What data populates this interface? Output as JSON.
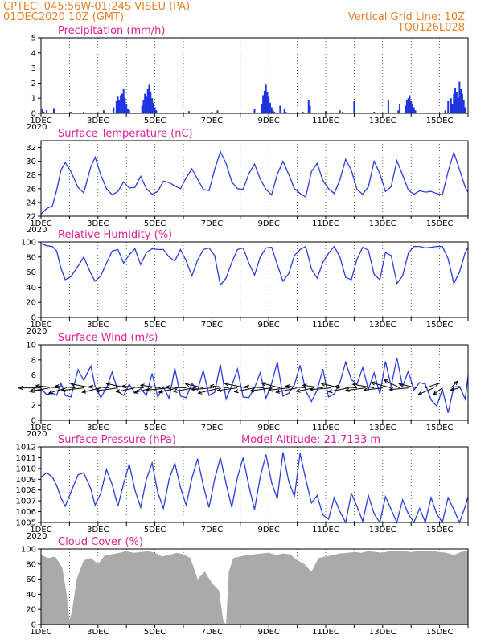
{
  "header": {
    "line1": "CPTEC:   045:56W-01:24S   VISEU (PA)",
    "line2": "01DEC2020 10Z (GMT)",
    "right1": "Vertical Grid Line: 10Z",
    "right2": "TQ0126L028"
  },
  "colors": {
    "header": "#e8822a",
    "title": "#e0209a",
    "line": "#2a3fd6",
    "bar": "#1f32e0",
    "cloud": "#aaaaaa",
    "arrow": "#000000"
  },
  "x_axis": {
    "ticks": [
      "1DEC",
      "3DEC",
      "5DEC",
      "7DEC",
      "9DEC",
      "11DEC",
      "13DEC",
      "15DEC"
    ],
    "cut_label": "2020",
    "day_range": [
      0,
      15
    ]
  },
  "chart_data": [
    {
      "id": "precip",
      "type": "bar",
      "title": "Precipitation (mm/h)",
      "ylim": [
        0,
        5
      ],
      "yticks": [
        0,
        1,
        2,
        3,
        4,
        5
      ],
      "x": [
        0.05,
        0.1,
        0.2,
        0.45,
        1.05,
        1.5,
        2.2,
        2.55,
        2.65,
        2.7,
        2.75,
        2.8,
        2.85,
        2.9,
        2.95,
        3.0,
        3.05,
        3.1,
        3.55,
        3.6,
        3.65,
        3.7,
        3.75,
        3.8,
        3.85,
        3.9,
        3.95,
        4.0,
        4.05,
        5.2,
        6.0,
        6.2,
        7.5,
        7.75,
        7.8,
        7.85,
        7.9,
        7.95,
        8.0,
        8.05,
        8.1,
        8.15,
        8.2,
        8.4,
        8.55,
        8.6,
        9.2,
        9.4,
        9.45,
        10.0,
        10.5,
        10.6,
        11.0,
        11.7,
        12.2,
        12.55,
        12.6,
        12.8,
        12.85,
        12.9,
        12.95,
        13.0,
        13.05,
        13.1,
        13.15,
        14.2,
        14.3,
        14.4,
        14.45,
        14.5,
        14.55,
        14.6,
        14.65,
        14.7,
        14.75,
        14.8,
        14.85,
        14.9
      ],
      "values": [
        0.3,
        0.1,
        0.2,
        0.35,
        0.1,
        0.1,
        0.2,
        0.4,
        0.8,
        1.1,
        0.9,
        1.2,
        1.3,
        1.6,
        1.0,
        0.6,
        0.3,
        0.2,
        0.5,
        0.9,
        1.3,
        1.1,
        1.6,
        1.9,
        1.4,
        1.0,
        0.7,
        0.4,
        0.2,
        0.15,
        0.1,
        0.2,
        0.3,
        0.6,
        1.2,
        1.5,
        1.9,
        1.4,
        1.1,
        0.7,
        0.4,
        0.2,
        0.1,
        0.5,
        0.3,
        0.1,
        0.1,
        0.9,
        0.5,
        0.15,
        0.2,
        0.1,
        0.8,
        0.1,
        0.9,
        0.2,
        0.6,
        0.5,
        0.9,
        1.0,
        1.2,
        0.8,
        0.6,
        0.4,
        0.2,
        0.2,
        0.8,
        1.0,
        0.6,
        1.3,
        1.7,
        1.4,
        1.0,
        2.1,
        1.6,
        1.3,
        0.9,
        0.4
      ]
    },
    {
      "id": "temp",
      "type": "line",
      "title": "Surface Temperature (nC)",
      "ylim": [
        22,
        33
      ],
      "yticks": [
        22,
        24,
        26,
        28,
        30,
        32
      ],
      "x": [
        0,
        0.2,
        0.4,
        0.55,
        0.7,
        0.85,
        1.05,
        1.3,
        1.5,
        1.75,
        1.9,
        2.1,
        2.3,
        2.5,
        2.7,
        2.9,
        3.1,
        3.3,
        3.5,
        3.7,
        3.9,
        4.1,
        4.3,
        4.5,
        4.7,
        4.9,
        5.1,
        5.3,
        5.5,
        5.7,
        5.9,
        6.1,
        6.3,
        6.5,
        6.7,
        6.9,
        7.1,
        7.3,
        7.5,
        7.7,
        7.9,
        8.1,
        8.3,
        8.5,
        8.7,
        8.9,
        9.1,
        9.3,
        9.5,
        9.7,
        9.9,
        10.1,
        10.3,
        10.5,
        10.7,
        10.9,
        11.1,
        11.3,
        11.5,
        11.7,
        11.9,
        12.1,
        12.3,
        12.5,
        12.7,
        12.9,
        13.1,
        13.3,
        13.5,
        13.7,
        13.9,
        14.1,
        14.3,
        14.5,
        14.7,
        14.9,
        15.0
      ],
      "values": [
        22.3,
        23.1,
        23.5,
        25.8,
        28.7,
        29.8,
        28.5,
        26.2,
        25.4,
        29.2,
        30.6,
        28.0,
        26.0,
        25.1,
        25.6,
        27.0,
        26.1,
        26.2,
        27.8,
        26.0,
        25.2,
        25.6,
        27.1,
        26.9,
        26.4,
        26.0,
        27.6,
        28.9,
        27.4,
        25.9,
        25.7,
        28.8,
        31.4,
        29.7,
        27.0,
        26.0,
        25.9,
        28.2,
        29.6,
        27.4,
        25.9,
        25.1,
        28.1,
        30.0,
        28.1,
        26.0,
        25.3,
        24.8,
        28.5,
        29.7,
        27.2,
        26.0,
        25.3,
        27.3,
        30.3,
        28.7,
        25.9,
        25.2,
        26.3,
        30.0,
        28.2,
        25.6,
        26.3,
        30.1,
        28.0,
        25.8,
        25.2,
        25.7,
        25.5,
        25.6,
        25.3,
        25.1,
        28.5,
        31.3,
        28.8,
        26.2,
        25.5
      ]
    },
    {
      "id": "rh",
      "type": "line",
      "title": "Relative Humidity (%)",
      "ylim": [
        0,
        100
      ],
      "yticks": [
        0,
        20,
        40,
        60,
        80,
        100
      ],
      "x": [
        0,
        0.2,
        0.4,
        0.55,
        0.7,
        0.85,
        1.05,
        1.3,
        1.5,
        1.75,
        1.9,
        2.1,
        2.3,
        2.5,
        2.7,
        2.9,
        3.1,
        3.3,
        3.5,
        3.7,
        3.9,
        4.1,
        4.3,
        4.5,
        4.7,
        4.9,
        5.1,
        5.3,
        5.5,
        5.7,
        5.9,
        6.1,
        6.3,
        6.5,
        6.7,
        6.9,
        7.1,
        7.3,
        7.5,
        7.7,
        7.9,
        8.1,
        8.3,
        8.5,
        8.7,
        8.9,
        9.1,
        9.3,
        9.5,
        9.7,
        9.9,
        10.1,
        10.3,
        10.5,
        10.7,
        10.9,
        11.1,
        11.3,
        11.5,
        11.7,
        11.9,
        12.1,
        12.3,
        12.5,
        12.7,
        12.9,
        13.1,
        13.3,
        13.5,
        13.7,
        13.9,
        14.1,
        14.3,
        14.5,
        14.7,
        14.9,
        15.0
      ],
      "values": [
        98,
        95,
        94,
        88,
        65,
        50,
        54,
        68,
        80,
        58,
        48,
        55,
        72,
        88,
        90,
        72,
        83,
        91,
        70,
        86,
        91,
        90,
        90,
        80,
        75,
        90,
        75,
        55,
        76,
        90,
        92,
        82,
        43,
        52,
        73,
        90,
        92,
        72,
        56,
        80,
        92,
        93,
        70,
        48,
        58,
        82,
        90,
        94,
        64,
        52,
        73,
        85,
        94,
        80,
        53,
        50,
        77,
        93,
        89,
        57,
        50,
        86,
        82,
        45,
        55,
        85,
        94,
        94,
        92,
        93,
        94,
        94,
        78,
        45,
        60,
        86,
        93
      ]
    },
    {
      "id": "wind",
      "type": "line",
      "title": "Surface Wind (m/s)",
      "ylim": [
        0,
        10
      ],
      "yticks": [
        0,
        2,
        4,
        6,
        8,
        10
      ],
      "x": [
        0,
        0.2,
        0.4,
        0.55,
        0.7,
        0.85,
        1.05,
        1.3,
        1.5,
        1.75,
        1.9,
        2.1,
        2.3,
        2.5,
        2.7,
        2.9,
        3.1,
        3.3,
        3.5,
        3.7,
        3.9,
        4.1,
        4.3,
        4.5,
        4.7,
        4.9,
        5.1,
        5.3,
        5.5,
        5.7,
        5.9,
        6.1,
        6.3,
        6.5,
        6.7,
        6.9,
        7.1,
        7.3,
        7.5,
        7.7,
        7.9,
        8.1,
        8.3,
        8.5,
        8.7,
        8.9,
        9.1,
        9.3,
        9.5,
        9.7,
        9.9,
        10.1,
        10.3,
        10.5,
        10.7,
        10.9,
        11.1,
        11.3,
        11.5,
        11.7,
        11.9,
        12.1,
        12.3,
        12.5,
        12.7,
        12.9,
        13.1,
        13.3,
        13.5,
        13.7,
        13.9,
        14.1,
        14.3,
        14.5,
        14.7,
        14.9,
        15.0
      ],
      "values": [
        4.2,
        3.4,
        3.6,
        3.3,
        4.9,
        3.3,
        3.1,
        6.7,
        5.3,
        7.2,
        4.5,
        3.0,
        4.3,
        6.4,
        3.8,
        3.3,
        4.8,
        3.6,
        4.2,
        3.3,
        6.2,
        3.1,
        4.4,
        2.9,
        6.9,
        3.2,
        3.0,
        4.9,
        4.0,
        6.6,
        3.3,
        3.7,
        7.4,
        2.8,
        4.6,
        6.8,
        3.1,
        3.0,
        4.3,
        6.3,
        2.9,
        4.9,
        7.7,
        3.2,
        3.6,
        4.7,
        7.3,
        3.9,
        2.5,
        4.0,
        6.8,
        3.1,
        3.5,
        5.0,
        7.7,
        5.4,
        4.8,
        7.0,
        4.1,
        6.3,
        3.5,
        7.8,
        4.5,
        8.3,
        4.5,
        6.5,
        4.0,
        5.0,
        4.8,
        2.7,
        1.9,
        4.1,
        1.0,
        4.4,
        4.5,
        2.8,
        5.9
      ]
    },
    {
      "id": "pressure",
      "type": "line",
      "title": "Surface Pressure (hPa)",
      "annotation": "Model Altitude: 21.7133 m",
      "ylim": [
        1005,
        1012
      ],
      "yticks": [
        1005,
        1006,
        1007,
        1008,
        1009,
        1010,
        1011,
        1012
      ],
      "x": [
        0,
        0.2,
        0.4,
        0.55,
        0.7,
        0.85,
        1.05,
        1.3,
        1.5,
        1.75,
        1.9,
        2.1,
        2.3,
        2.5,
        2.7,
        2.9,
        3.1,
        3.3,
        3.5,
        3.7,
        3.9,
        4.1,
        4.3,
        4.5,
        4.7,
        4.9,
        5.1,
        5.3,
        5.5,
        5.7,
        5.9,
        6.1,
        6.3,
        6.5,
        6.7,
        6.9,
        7.1,
        7.3,
        7.5,
        7.7,
        7.9,
        8.1,
        8.3,
        8.5,
        8.7,
        8.9,
        9.1,
        9.3,
        9.5,
        9.7,
        9.9,
        10.1,
        10.3,
        10.5,
        10.7,
        10.9,
        11.1,
        11.3,
        11.5,
        11.7,
        11.9,
        12.1,
        12.3,
        12.5,
        12.7,
        12.9,
        13.1,
        13.3,
        13.5,
        13.7,
        13.9,
        14.1,
        14.3,
        14.5,
        14.7,
        14.9,
        15.0
      ],
      "values": [
        1009.2,
        1009.6,
        1009.2,
        1008.4,
        1007.3,
        1006.5,
        1007.8,
        1009.4,
        1009.6,
        1008.1,
        1006.6,
        1007.7,
        1009.9,
        1008.5,
        1006.5,
        1008.6,
        1010.4,
        1008.0,
        1006.4,
        1009.0,
        1010.5,
        1007.8,
        1006.3,
        1009.0,
        1010.5,
        1008.2,
        1006.6,
        1009.1,
        1010.9,
        1008.4,
        1006.4,
        1009.0,
        1011.0,
        1008.6,
        1006.4,
        1009.2,
        1011.0,
        1008.4,
        1006.2,
        1009.2,
        1011.3,
        1008.7,
        1007.2,
        1011.5,
        1008.8,
        1007.4,
        1011.4,
        1009.0,
        1006.8,
        1007.5,
        1005.7,
        1005.3,
        1007.3,
        1006.0,
        1005.0,
        1007.7,
        1006.5,
        1005.1,
        1007.5,
        1005.8,
        1005.0,
        1007.4,
        1006.2,
        1005.0,
        1007.1,
        1005.8,
        1005.0,
        1006.3,
        1005.0,
        1007.3,
        1005.8,
        1005.0,
        1007.3,
        1006.2,
        1005.0,
        1006.5,
        1007.4
      ]
    },
    {
      "id": "cloud",
      "type": "area",
      "title": "Cloud Cover (%)",
      "ylim": [
        0,
        100
      ],
      "yticks": [
        0,
        20,
        40,
        60,
        80,
        100
      ],
      "x": [
        0,
        0.25,
        0.5,
        0.75,
        0.9,
        1.0,
        1.1,
        1.25,
        1.5,
        1.75,
        2.0,
        2.25,
        2.5,
        2.75,
        3.0,
        3.25,
        3.5,
        3.75,
        4.0,
        4.25,
        4.5,
        4.75,
        5.0,
        5.25,
        5.5,
        5.75,
        6.0,
        6.25,
        6.4,
        6.5,
        6.6,
        6.75,
        7.0,
        7.25,
        7.5,
        7.75,
        8.0,
        8.25,
        8.5,
        8.75,
        9.0,
        9.25,
        9.5,
        9.75,
        10.0,
        10.25,
        10.5,
        10.75,
        11.0,
        11.25,
        11.5,
        11.75,
        12.0,
        12.25,
        12.5,
        12.75,
        13.0,
        13.25,
        13.5,
        13.75,
        14.0,
        14.25,
        14.5,
        14.75,
        15.0
      ],
      "values": [
        92,
        88,
        90,
        75,
        40,
        5,
        20,
        60,
        85,
        88,
        80,
        92,
        93,
        95,
        97,
        95,
        96,
        97,
        95,
        90,
        92,
        95,
        93,
        88,
        60,
        70,
        55,
        45,
        5,
        0,
        70,
        88,
        90,
        92,
        93,
        94,
        95,
        92,
        94,
        93,
        85,
        80,
        70,
        88,
        90,
        92,
        94,
        95,
        96,
        95,
        97,
        96,
        95,
        97,
        98,
        97,
        96,
        97,
        98,
        97,
        96,
        95,
        92,
        96,
        98
      ]
    }
  ],
  "wind_vectors": {
    "x": [
      0.0,
      0.3,
      0.6,
      0.9,
      1.2,
      1.5,
      1.8,
      2.1,
      2.4,
      2.7,
      3.0,
      3.3,
      3.6,
      3.9,
      4.2,
      4.5,
      4.8,
      5.1,
      5.4,
      5.7,
      6.0,
      6.3,
      6.6,
      6.9,
      7.2,
      7.5,
      7.8,
      8.1,
      8.4,
      8.7,
      9.0,
      9.3,
      9.6,
      9.9,
      10.2,
      10.5,
      10.8,
      11.1,
      11.4,
      11.7,
      12.0,
      12.3,
      12.6,
      12.9,
      13.2,
      13.5,
      13.8,
      14.1,
      14.4,
      14.7
    ],
    "u": [
      -5,
      -4.5,
      -5,
      -4,
      -4.5,
      -5,
      -4.8,
      -4.2,
      -4.5,
      -5,
      -4.5,
      -4.2,
      -4.8,
      -4,
      -4.5,
      -5,
      -4.2,
      -4.5,
      -4.8,
      -4,
      -4.5,
      -5,
      -4.2,
      -4.5,
      -4.8,
      -4.5,
      -4,
      -4.8,
      -4.2,
      -4.5,
      -4.8,
      -4.5,
      -4,
      -4.5,
      -4.8,
      -4.2,
      -4.5,
      -5,
      -4.5,
      -4.8,
      -4.2,
      -4.5,
      -3.5,
      -4.2,
      -4,
      3,
      -3.5,
      -2,
      1.5,
      -2
    ],
    "v": [
      0,
      -0.8,
      0.5,
      -1.2,
      0.4,
      -0.6,
      0.9,
      -1.0,
      0.3,
      -0.7,
      1.0,
      -0.9,
      0.4,
      -1.1,
      0.6,
      -0.5,
      -1.0,
      0.2,
      -0.8,
      0.9,
      -0.4,
      -1.2,
      0.5,
      -0.6,
      1.0,
      -0.9,
      0.3,
      -0.7,
      1.1,
      -0.5,
      -1.0,
      0.4,
      -0.8,
      0.6,
      -0.4,
      1.0,
      -0.9,
      0.3,
      -0.6,
      0.8,
      -0.5,
      1.2,
      1.8,
      -0.4,
      0.9,
      1.0,
      -1.5,
      -1.5,
      1.5,
      -0.5
    ]
  }
}
